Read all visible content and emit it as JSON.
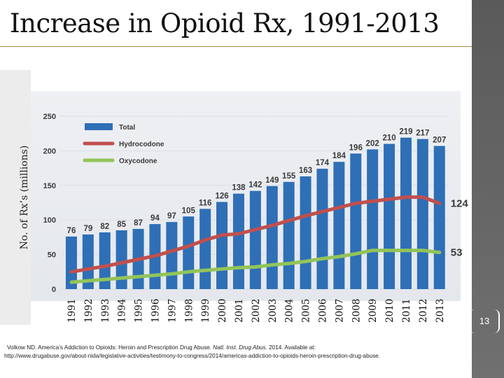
{
  "slide": {
    "title": "Increase in Opioid Rx, 1991-2013",
    "page_number": "13",
    "citation": {
      "line1_a": "Volkow ND. America’s Addiction to Opioids: Heroin and Prescription Drug Abuse.",
      "line1_journal": "Natl. Inst. Drug Abus.",
      "line1_b": "2014. Available at:",
      "url": "http://www.drugabuse.gov/about-nida/legislative-activities/testimony-to-congress/2014/americas-addiction-to-opioids-heroin-prescription-drug-abuse."
    }
  },
  "chart_data": {
    "type": "bar",
    "title": "Increase in Opioid Rx, 1991-2013",
    "ylabel": "No. of Rx’s (millions)",
    "xlabel": "",
    "ylim": [
      0,
      250
    ],
    "yticks": [
      "0",
      "50",
      "100",
      "150",
      "200",
      "250"
    ],
    "ytick_values": [
      0,
      50,
      100,
      150,
      200,
      250
    ],
    "categories": [
      "1991",
      "1992",
      "1993",
      "1994",
      "1995",
      "1996",
      "1997",
      "1998",
      "1999",
      "2000",
      "2001",
      "2002",
      "2003",
      "2004",
      "2005",
      "2006",
      "2007",
      "2008",
      "2009",
      "2010",
      "2011",
      "2012",
      "2013"
    ],
    "series": [
      {
        "name": "Total",
        "kind": "bar",
        "color": "#2e6fb6",
        "values": [
          76,
          79,
          82,
          85,
          87,
          94,
          97,
          105,
          116,
          126,
          138,
          142,
          149,
          155,
          163,
          174,
          184,
          196,
          202,
          210,
          219,
          217,
          207
        ]
      },
      {
        "name": "Hydrocodone",
        "kind": "line",
        "color": "#c0504d",
        "values": [
          25,
          29,
          33,
          38,
          43,
          48,
          55,
          62,
          71,
          78,
          80,
          86,
          92,
          99,
          106,
          112,
          118,
          124,
          127,
          130,
          133,
          133,
          124
        ]
      },
      {
        "name": "Oxycodone",
        "kind": "line",
        "color": "#92c45a",
        "values": [
          10,
          12,
          14,
          16,
          18,
          20,
          22,
          25,
          27,
          29,
          31,
          32,
          35,
          37,
          40,
          44,
          47,
          51,
          56,
          56,
          56,
          56,
          53
        ]
      }
    ],
    "data_labels": [
      "76",
      "79",
      "82",
      "85",
      "87",
      "94",
      "97",
      "105",
      "116",
      "126",
      "138",
      "142",
      "149",
      "155",
      "163",
      "174",
      "184",
      "196",
      "202",
      "210",
      "219",
      "217",
      "207"
    ],
    "end_labels": {
      "hydrocodone": "124",
      "oxycodone": "53"
    },
    "legend_position": "top-left"
  }
}
